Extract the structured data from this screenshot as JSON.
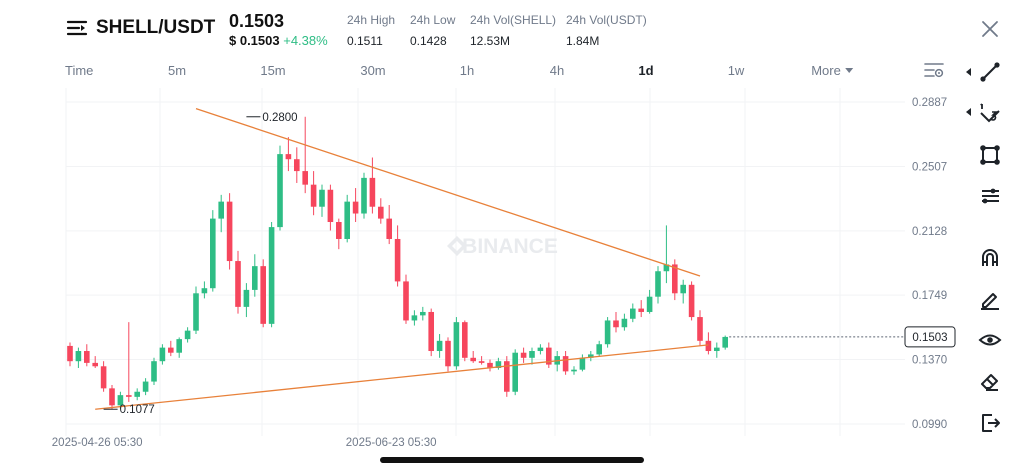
{
  "header": {
    "pair": "SHELL/USDT",
    "price": "0.1503",
    "price_usd": "$ 0.1503",
    "change": "+4.38%",
    "stats": [
      {
        "label": "24h High",
        "value": "0.1511"
      },
      {
        "label": "24h Low",
        "value": "0.1428"
      },
      {
        "label": "24h Vol(SHELL)",
        "value": "12.53M"
      },
      {
        "label": "24h Vol(USDT)",
        "value": "1.84M"
      }
    ]
  },
  "intervals": {
    "time_label": "Time",
    "items": [
      "5m",
      "15m",
      "30m",
      "1h",
      "4h",
      "1d",
      "1w"
    ],
    "active": "1d",
    "more_label": "More"
  },
  "chart_data": {
    "type": "candlestick",
    "title": "",
    "y_ticks": [
      "0.2887",
      "0.2507",
      "0.2128",
      "0.1749",
      "0.1370",
      "0.0990"
    ],
    "ylim": [
      0.099,
      0.2887
    ],
    "x_ticks": [
      "2025-04-26 05:30",
      "2025-06-23 05:30"
    ],
    "watermark": "BINANCE",
    "current_price": "0.1503",
    "annotations": {
      "high": "0.2800",
      "low": "0.1077"
    },
    "trendlines": [
      {
        "name": "upper",
        "from": {
          "candle": 15,
          "price": 0.2848
        },
        "to": {
          "candle": 75,
          "price": 0.1862
        }
      },
      {
        "name": "lower",
        "from": {
          "candle": 3,
          "price": 0.1077
        },
        "to": {
          "candle": 76,
          "price": 0.1456
        }
      }
    ],
    "colors": {
      "up": "#2ebd85",
      "down": "#f6465d",
      "trend": "#e8813a"
    },
    "candles": [
      [
        0.145,
        0.147,
        0.133,
        0.136
      ],
      [
        0.136,
        0.144,
        0.132,
        0.142
      ],
      [
        0.142,
        0.146,
        0.133,
        0.135
      ],
      [
        0.135,
        0.139,
        0.132,
        0.133
      ],
      [
        0.133,
        0.136,
        0.118,
        0.12
      ],
      [
        0.12,
        0.122,
        0.1077,
        0.11
      ],
      [
        0.11,
        0.118,
        0.108,
        0.116
      ],
      [
        0.116,
        0.159,
        0.112,
        0.115
      ],
      [
        0.115,
        0.12,
        0.113,
        0.118
      ],
      [
        0.118,
        0.126,
        0.116,
        0.124
      ],
      [
        0.124,
        0.138,
        0.122,
        0.136
      ],
      [
        0.136,
        0.146,
        0.134,
        0.144
      ],
      [
        0.144,
        0.148,
        0.139,
        0.141
      ],
      [
        0.141,
        0.15,
        0.138,
        0.149
      ],
      [
        0.149,
        0.156,
        0.147,
        0.154
      ],
      [
        0.154,
        0.18,
        0.152,
        0.176
      ],
      [
        0.176,
        0.183,
        0.173,
        0.179
      ],
      [
        0.179,
        0.225,
        0.177,
        0.22
      ],
      [
        0.22,
        0.234,
        0.212,
        0.23
      ],
      [
        0.23,
        0.235,
        0.19,
        0.195
      ],
      [
        0.195,
        0.201,
        0.164,
        0.168
      ],
      [
        0.168,
        0.182,
        0.162,
        0.178
      ],
      [
        0.178,
        0.199,
        0.174,
        0.192
      ],
      [
        0.192,
        0.196,
        0.156,
        0.158
      ],
      [
        0.158,
        0.218,
        0.156,
        0.215
      ],
      [
        0.215,
        0.263,
        0.213,
        0.258
      ],
      [
        0.258,
        0.268,
        0.248,
        0.255
      ],
      [
        0.255,
        0.262,
        0.241,
        0.248
      ],
      [
        0.248,
        0.28,
        0.235,
        0.24
      ],
      [
        0.24,
        0.248,
        0.222,
        0.227
      ],
      [
        0.227,
        0.24,
        0.221,
        0.237
      ],
      [
        0.237,
        0.24,
        0.213,
        0.218
      ],
      [
        0.218,
        0.22,
        0.202,
        0.208
      ],
      [
        0.208,
        0.234,
        0.206,
        0.23
      ],
      [
        0.23,
        0.238,
        0.218,
        0.223
      ],
      [
        0.223,
        0.247,
        0.22,
        0.244
      ],
      [
        0.244,
        0.256,
        0.223,
        0.227
      ],
      [
        0.227,
        0.232,
        0.217,
        0.22
      ],
      [
        0.22,
        0.228,
        0.205,
        0.208
      ],
      [
        0.208,
        0.216,
        0.18,
        0.183
      ],
      [
        0.183,
        0.187,
        0.158,
        0.16
      ],
      [
        0.16,
        0.166,
        0.157,
        0.163
      ],
      [
        0.163,
        0.168,
        0.16,
        0.165
      ],
      [
        0.165,
        0.167,
        0.139,
        0.142
      ],
      [
        0.142,
        0.152,
        0.138,
        0.148
      ],
      [
        0.148,
        0.15,
        0.13,
        0.133
      ],
      [
        0.133,
        0.162,
        0.131,
        0.159
      ],
      [
        0.159,
        0.16,
        0.136,
        0.138
      ],
      [
        0.138,
        0.142,
        0.135,
        0.136
      ],
      [
        0.136,
        0.139,
        0.134,
        0.135
      ],
      [
        0.135,
        0.137,
        0.13,
        0.132
      ],
      [
        0.132,
        0.138,
        0.131,
        0.136
      ],
      [
        0.136,
        0.139,
        0.115,
        0.118
      ],
      [
        0.118,
        0.143,
        0.116,
        0.141
      ],
      [
        0.141,
        0.144,
        0.135,
        0.138
      ],
      [
        0.138,
        0.144,
        0.134,
        0.142
      ],
      [
        0.142,
        0.146,
        0.14,
        0.144
      ],
      [
        0.144,
        0.147,
        0.132,
        0.134
      ],
      [
        0.134,
        0.142,
        0.13,
        0.139
      ],
      [
        0.139,
        0.142,
        0.128,
        0.13
      ],
      [
        0.13,
        0.133,
        0.128,
        0.131
      ],
      [
        0.131,
        0.14,
        0.13,
        0.138
      ],
      [
        0.138,
        0.142,
        0.136,
        0.14
      ],
      [
        0.14,
        0.148,
        0.139,
        0.146
      ],
      [
        0.146,
        0.162,
        0.144,
        0.16
      ],
      [
        0.16,
        0.165,
        0.153,
        0.156
      ],
      [
        0.156,
        0.164,
        0.154,
        0.161
      ],
      [
        0.161,
        0.17,
        0.159,
        0.167
      ],
      [
        0.167,
        0.172,
        0.162,
        0.165
      ],
      [
        0.165,
        0.178,
        0.164,
        0.174
      ],
      [
        0.174,
        0.192,
        0.17,
        0.189
      ],
      [
        0.189,
        0.216,
        0.182,
        0.193
      ],
      [
        0.193,
        0.196,
        0.172,
        0.176
      ],
      [
        0.176,
        0.184,
        0.17,
        0.181
      ],
      [
        0.181,
        0.183,
        0.16,
        0.162
      ],
      [
        0.162,
        0.166,
        0.145,
        0.148
      ],
      [
        0.148,
        0.153,
        0.14,
        0.142
      ],
      [
        0.142,
        0.147,
        0.138,
        0.144
      ],
      [
        0.144,
        0.1511,
        0.1428,
        0.1503
      ]
    ]
  },
  "toolbar": {
    "tools": [
      "trend-line-tool",
      "fib-tool",
      "rectangle-tool",
      "parallel-lines-tool",
      "magnet-tool",
      "brush-tool",
      "visibility-tool",
      "eraser-tool",
      "exit-drawing-tool"
    ]
  }
}
